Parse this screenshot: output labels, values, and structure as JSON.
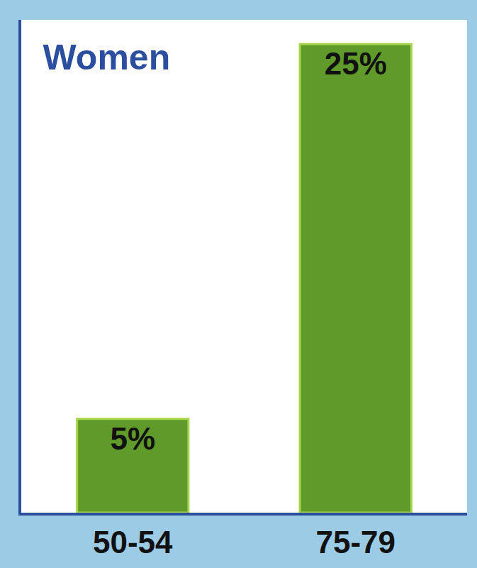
{
  "chart_data": {
    "type": "bar",
    "title": "Women",
    "categories": [
      "50-54",
      "75-79"
    ],
    "values": [
      5,
      25
    ],
    "value_labels": [
      "5%",
      "25%"
    ],
    "color": "#5f9a2a",
    "ylim": [
      0,
      26.3
    ],
    "grid": false,
    "data_labels": true,
    "tick_labels": "x"
  }
}
